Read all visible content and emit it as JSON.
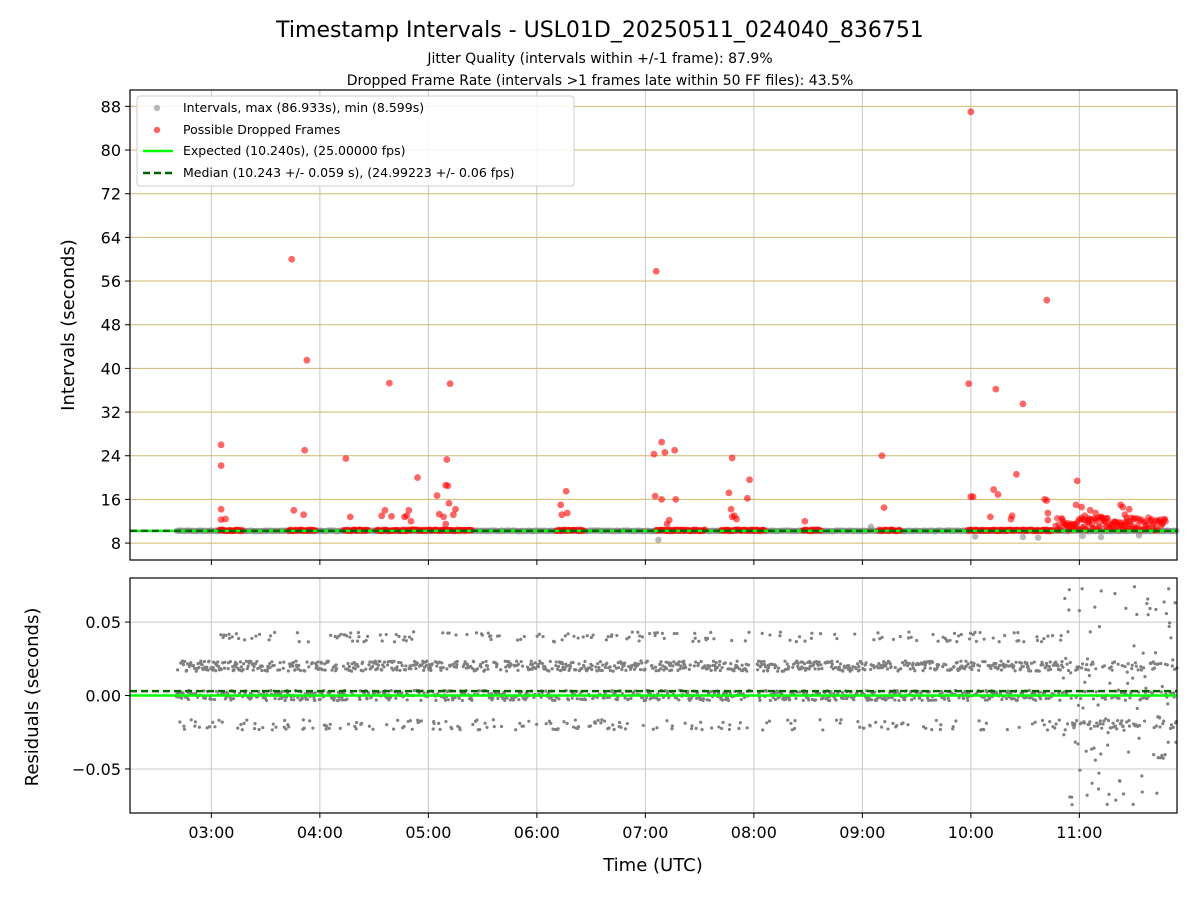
{
  "chart_data": {
    "type": "scatter",
    "title": "Timestamp Intervals - USL01D_20250511_024040_836751",
    "subtitle_lines": [
      "Jitter Quality (intervals within +/-1 frame): 87.9%",
      "Dropped Frame Rate (intervals >1 frames late within 50 FF files): 43.5%"
    ],
    "xlabel": "Time (UTC)",
    "x_ticks": [
      "03:00",
      "04:00",
      "05:00",
      "06:00",
      "07:00",
      "08:00",
      "09:00",
      "10:00",
      "11:00"
    ],
    "x_range_hours": [
      2.25,
      11.9
    ],
    "grid": true,
    "colors": {
      "intervals": "#808080",
      "dropped": "#ff0000",
      "expected": "#00ff00",
      "median": "#006400",
      "hgrid_top": "#d2b86e",
      "grid": "#c8c8c8"
    },
    "top_panel": {
      "ylabel": "Intervals (seconds)",
      "ylim": [
        4.9,
        91.0
      ],
      "y_ticks": [
        8,
        16,
        24,
        32,
        40,
        48,
        56,
        64,
        72,
        80,
        88
      ],
      "expected_interval": 10.24,
      "median_interval": 10.243,
      "legend_position": "upper-left",
      "legend": [
        "Intervals, max (86.933s), min (8.599s)",
        "Possible Dropped Frames",
        "Expected (10.240s), (25.00000 fps)",
        "Median (10.243 +/- 0.059 s), (24.99223 +/- 0.06 fps)"
      ],
      "interval_outliers": [
        {
          "x": 7.12,
          "y": 8.6
        },
        {
          "x": 9.08,
          "y": 11.0
        },
        {
          "x": 10.04,
          "y": 9.2
        },
        {
          "x": 10.62,
          "y": 9.0
        },
        {
          "x": 11.03,
          "y": 9.3
        },
        {
          "x": 11.2,
          "y": 9.1
        },
        {
          "x": 11.55,
          "y": 9.4
        },
        {
          "x": 10.48,
          "y": 9.1
        }
      ],
      "interval_segments": [
        [
          2.68,
          11.9
        ]
      ],
      "dropped_frames": [
        {
          "x": 3.09,
          "y": 26.0
        },
        {
          "x": 3.09,
          "y": 22.2
        },
        {
          "x": 3.09,
          "y": 14.2
        },
        {
          "x": 3.09,
          "y": 12.3
        },
        {
          "x": 3.13,
          "y": 12.4
        },
        {
          "x": 3.74,
          "y": 60.0
        },
        {
          "x": 3.76,
          "y": 14.0
        },
        {
          "x": 3.86,
          "y": 25.0
        },
        {
          "x": 3.88,
          "y": 41.5
        },
        {
          "x": 3.85,
          "y": 13.2
        },
        {
          "x": 4.24,
          "y": 23.5
        },
        {
          "x": 4.28,
          "y": 12.8
        },
        {
          "x": 4.57,
          "y": 13.0
        },
        {
          "x": 4.6,
          "y": 14.0
        },
        {
          "x": 4.64,
          "y": 37.3
        },
        {
          "x": 4.66,
          "y": 12.9
        },
        {
          "x": 4.78,
          "y": 12.8
        },
        {
          "x": 4.8,
          "y": 13.0
        },
        {
          "x": 4.82,
          "y": 14.0
        },
        {
          "x": 4.84,
          "y": 12.0
        },
        {
          "x": 4.9,
          "y": 20.0
        },
        {
          "x": 5.08,
          "y": 16.7
        },
        {
          "x": 5.1,
          "y": 13.3
        },
        {
          "x": 5.14,
          "y": 12.8
        },
        {
          "x": 5.17,
          "y": 23.3
        },
        {
          "x": 5.16,
          "y": 18.6
        },
        {
          "x": 5.18,
          "y": 18.5
        },
        {
          "x": 5.19,
          "y": 15.3
        },
        {
          "x": 5.2,
          "y": 37.2
        },
        {
          "x": 5.23,
          "y": 13.2
        },
        {
          "x": 5.25,
          "y": 14.2
        },
        {
          "x": 5.16,
          "y": 11.5
        },
        {
          "x": 6.22,
          "y": 15.0
        },
        {
          "x": 6.23,
          "y": 13.2
        },
        {
          "x": 6.27,
          "y": 17.5
        },
        {
          "x": 6.28,
          "y": 13.5
        },
        {
          "x": 7.1,
          "y": 57.8
        },
        {
          "x": 7.08,
          "y": 24.3
        },
        {
          "x": 7.09,
          "y": 16.6
        },
        {
          "x": 7.15,
          "y": 26.5
        },
        {
          "x": 7.15,
          "y": 16.0
        },
        {
          "x": 7.18,
          "y": 24.6
        },
        {
          "x": 7.22,
          "y": 12.2
        },
        {
          "x": 7.2,
          "y": 11.5
        },
        {
          "x": 7.27,
          "y": 25.0
        },
        {
          "x": 7.28,
          "y": 16.0
        },
        {
          "x": 7.77,
          "y": 17.2
        },
        {
          "x": 7.8,
          "y": 23.6
        },
        {
          "x": 7.79,
          "y": 14.2
        },
        {
          "x": 7.82,
          "y": 13.0
        },
        {
          "x": 7.84,
          "y": 12.4
        },
        {
          "x": 7.8,
          "y": 12.8
        },
        {
          "x": 7.96,
          "y": 19.6
        },
        {
          "x": 7.94,
          "y": 16.2
        },
        {
          "x": 8.47,
          "y": 12.0
        },
        {
          "x": 9.18,
          "y": 24.0
        },
        {
          "x": 9.2,
          "y": 14.5
        },
        {
          "x": 9.98,
          "y": 37.2
        },
        {
          "x": 10.0,
          "y": 87.0
        },
        {
          "x": 10.0,
          "y": 16.5
        },
        {
          "x": 10.02,
          "y": 16.5
        },
        {
          "x": 10.18,
          "y": 12.8
        },
        {
          "x": 10.21,
          "y": 17.8
        },
        {
          "x": 10.23,
          "y": 36.2
        },
        {
          "x": 10.25,
          "y": 16.9
        },
        {
          "x": 10.37,
          "y": 12.4
        },
        {
          "x": 10.38,
          "y": 13.0
        },
        {
          "x": 10.42,
          "y": 20.6
        },
        {
          "x": 10.48,
          "y": 33.5
        },
        {
          "x": 10.7,
          "y": 52.5
        },
        {
          "x": 10.68,
          "y": 16.0
        },
        {
          "x": 10.7,
          "y": 15.8
        },
        {
          "x": 10.71,
          "y": 13.5
        },
        {
          "x": 10.71,
          "y": 12.2
        },
        {
          "x": 10.98,
          "y": 19.4
        },
        {
          "x": 10.97,
          "y": 15.0
        },
        {
          "x": 11.02,
          "y": 14.6
        },
        {
          "x": 11.05,
          "y": 13.0
        },
        {
          "x": 11.1,
          "y": 14.0
        },
        {
          "x": 11.15,
          "y": 13.5
        },
        {
          "x": 11.2,
          "y": 12.8
        },
        {
          "x": 11.25,
          "y": 12.5
        },
        {
          "x": 11.38,
          "y": 15.0
        },
        {
          "x": 11.4,
          "y": 14.6
        },
        {
          "x": 11.42,
          "y": 13.2
        },
        {
          "x": 11.44,
          "y": 12.0
        },
        {
          "x": 11.46,
          "y": 14.2
        },
        {
          "x": 11.5,
          "y": 12.5
        },
        {
          "x": 11.33,
          "y": 11.8
        },
        {
          "x": 11.08,
          "y": 11.9
        },
        {
          "x": 10.93,
          "y": 11.5
        },
        {
          "x": 10.9,
          "y": 11.0
        }
      ],
      "dropped_clusters": [
        [
          3.07,
          3.29
        ],
        [
          3.71,
          3.96
        ],
        [
          4.22,
          4.45
        ],
        [
          4.52,
          5.4
        ],
        [
          6.18,
          6.43
        ],
        [
          7.1,
          7.55
        ],
        [
          7.7,
          8.1
        ],
        [
          8.45,
          8.62
        ],
        [
          9.15,
          9.35
        ],
        [
          9.97,
          10.75
        ],
        [
          10.78,
          11.8
        ]
      ]
    },
    "bottom_panel": {
      "ylabel": "Residuals (seconds)",
      "ylim": [
        -0.08,
        0.08
      ],
      "y_ticks": [
        -0.05,
        0.0,
        0.05
      ],
      "y_tick_labels": [
        "−0.05",
        "0.00",
        "0.05"
      ],
      "expected_residual": 0.0,
      "median_residual": 0.003,
      "bands": [
        -0.02,
        0.0,
        0.02,
        0.04
      ],
      "x_extent": [
        2.68,
        11.9
      ],
      "gap_interval": [
        7.96,
        8.03
      ],
      "scatter_from_hour": 10.85
    }
  }
}
